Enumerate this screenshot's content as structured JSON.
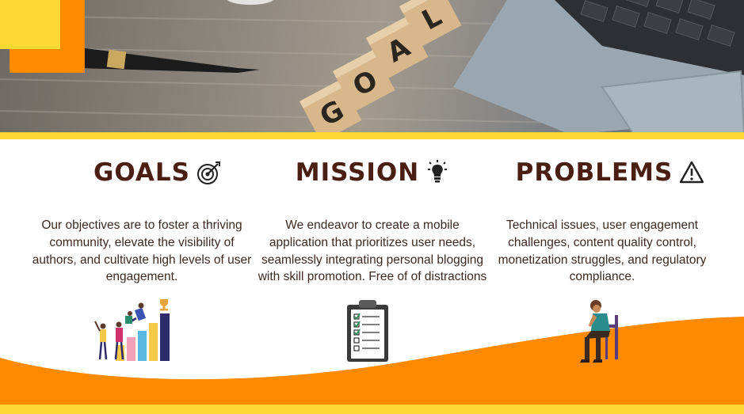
{
  "hero": {
    "photo": "desk with GOAL letter blocks, pen and laptop",
    "blocks_text": "GOAL"
  },
  "sections": [
    {
      "title": "GOALS",
      "icon": "target-icon",
      "text": "Our objectives are to foster a thriving community, elevate the visibility of authors, and cultivate high levels of user engagement."
    },
    {
      "title": "MISSION",
      "icon": "lightbulb-icon",
      "text": "We endeavor to create a mobile application that prioritizes user needs, seamlessly integrating personal blogging with skill promotion. Free of of distractions"
    },
    {
      "title": "PROBLEMS",
      "icon": "warning-icon",
      "text": "Technical issues, user engagement challenges, content quality control, monetization struggles, and regulatory compliance."
    }
  ],
  "colors": {
    "orange": "#ff8a00",
    "yellow": "#fdd835",
    "title": "#4a1e12"
  }
}
